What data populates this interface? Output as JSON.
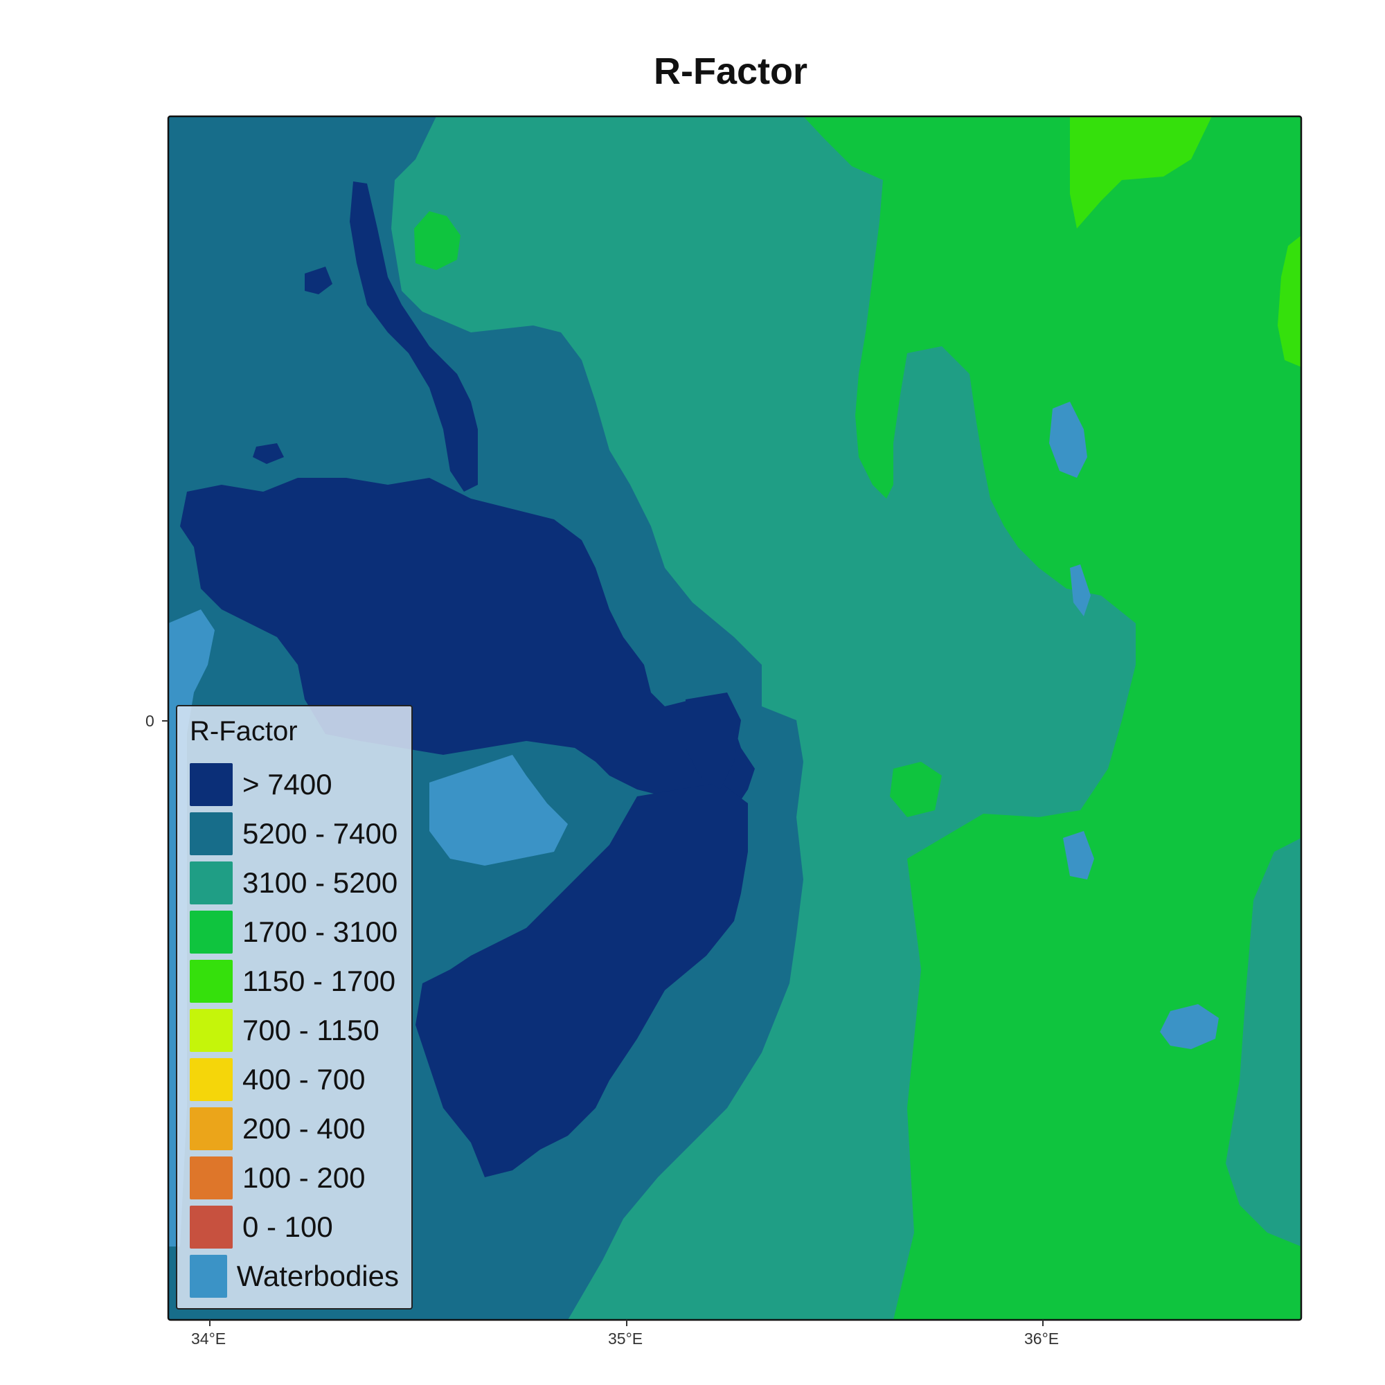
{
  "title": "R-Factor",
  "axes": {
    "x_ticks": [
      "34°E",
      "35°E",
      "36°E"
    ],
    "y_ticks": [
      "0"
    ]
  },
  "legend": {
    "title": "R-Factor",
    "placement": "bottom-left",
    "items": [
      {
        "label": "> 7400",
        "color": "#0b2f78"
      },
      {
        "label": "5200 - 7400",
        "color": "#176d8a"
      },
      {
        "label": "3100 - 5200",
        "color": "#1f9e85"
      },
      {
        "label": "1700 - 3100",
        "color": "#0fc43e"
      },
      {
        "label": "1150 - 1700",
        "color": "#35e00c"
      },
      {
        "label": "700 - 1150",
        "color": "#c5f50a"
      },
      {
        "label": "400 - 700",
        "color": "#f5d60a"
      },
      {
        "label": "200 - 400",
        "color": "#eba51a"
      },
      {
        "label": "100 - 200",
        "color": "#de762a"
      },
      {
        "label": "0 - 100",
        "color": "#c7513f"
      },
      {
        "label": "Waterbodies",
        "color": "#3b93c6"
      }
    ]
  }
}
